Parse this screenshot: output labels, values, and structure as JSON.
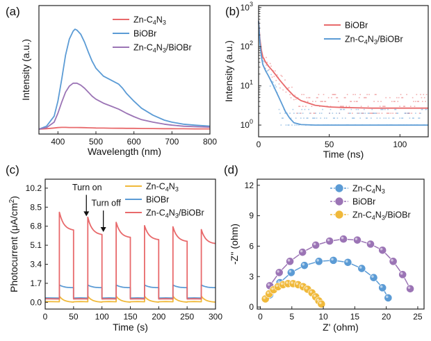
{
  "chart_data": [
    {
      "panel": "(a)",
      "type": "line",
      "xlabel": "Wavelength (nm)",
      "ylabel": "Intensity (a.u.)",
      "xlim": [
        350,
        800
      ],
      "ylim": [
        0,
        1.0
      ],
      "xticks": [
        "400",
        "500",
        "600",
        "700",
        "800"
      ],
      "xtick_values": [
        400,
        500,
        600,
        700,
        800
      ],
      "yticks_shown": false,
      "grid": false,
      "legend_position": "top-right",
      "x": [
        350,
        370,
        390,
        400,
        410,
        420,
        430,
        440,
        445,
        450,
        460,
        470,
        480,
        490,
        500,
        520,
        540,
        560,
        570,
        580,
        600,
        620,
        650,
        680,
        700,
        730,
        760,
        800
      ],
      "series": [
        {
          "name": "Zn-C4N3",
          "name_parts": [
            "Zn-C",
            "4",
            "N",
            "3",
            ""
          ],
          "color": "#e8696b",
          "values": [
            0.0,
            0.005,
            0.012,
            0.016,
            0.018,
            0.018,
            0.017,
            0.017,
            0.017,
            0.017,
            0.016,
            0.015,
            0.014,
            0.013,
            0.012,
            0.011,
            0.01,
            0.009,
            0.009,
            0.008,
            0.008,
            0.007,
            0.006,
            0.005,
            0.005,
            0.004,
            0.003,
            0.003
          ]
        },
        {
          "name": "BiOBr",
          "name_parts": [
            "BiOBr"
          ],
          "color": "#5b9bd5",
          "values": [
            0.0,
            0.03,
            0.13,
            0.28,
            0.5,
            0.74,
            0.9,
            0.98,
            1.0,
            0.99,
            0.95,
            0.87,
            0.77,
            0.68,
            0.61,
            0.53,
            0.49,
            0.45,
            0.41,
            0.36,
            0.28,
            0.21,
            0.14,
            0.09,
            0.07,
            0.05,
            0.04,
            0.03
          ]
        },
        {
          "name": "Zn-C4N3/BiOBr",
          "name_parts": [
            "Zn-C",
            "4",
            "N",
            "3",
            "/BiOBr"
          ],
          "color": "#9b74b5",
          "values": [
            0.0,
            0.015,
            0.07,
            0.16,
            0.27,
            0.37,
            0.43,
            0.46,
            0.46,
            0.46,
            0.44,
            0.41,
            0.37,
            0.33,
            0.3,
            0.26,
            0.23,
            0.2,
            0.18,
            0.16,
            0.125,
            0.095,
            0.07,
            0.05,
            0.04,
            0.03,
            0.025,
            0.02
          ]
        }
      ]
    },
    {
      "panel": "(b)",
      "type": "line",
      "xlabel": "Time (ns)",
      "ylabel": "Intensity (a.u.)",
      "xlim": [
        0,
        120
      ],
      "ylim_log10": [
        -0.3,
        3.05
      ],
      "yscale": "log",
      "xticks": [
        "0",
        "50",
        "100"
      ],
      "xtick_values": [
        0,
        50,
        100
      ],
      "yticks": [
        "10",
        "10",
        "10",
        "10"
      ],
      "ytick_exponents": [
        "0",
        "1",
        "2",
        "3"
      ],
      "ytick_values": [
        1,
        10,
        100,
        1000
      ],
      "grid": false,
      "legend_position": "top-right",
      "series": [
        {
          "name": "BiOBr",
          "name_parts": [
            "BiOBr"
          ],
          "color": "#e8696b",
          "fit_x": [
            0,
            1,
            2,
            3,
            5,
            7,
            10,
            15,
            20,
            25,
            30,
            40,
            50,
            60,
            80,
            100,
            120
          ],
          "fit_y": [
            450,
            150,
            80,
            55,
            40,
            32,
            24,
            14,
            8.5,
            5.5,
            4.2,
            3.2,
            2.9,
            2.8,
            2.7,
            2.7,
            2.7
          ]
        },
        {
          "name": "Zn-C4N3/BiOBr",
          "name_parts": [
            "Zn-C",
            "4",
            "N",
            "3",
            "/BiOBr"
          ],
          "color": "#5b9bd5",
          "fit_x": [
            0,
            1,
            2,
            3,
            5,
            7,
            10,
            13,
            16,
            19,
            22,
            25,
            30,
            40,
            60,
            80,
            100,
            120
          ],
          "fit_y": [
            450,
            120,
            55,
            35,
            24,
            18,
            11,
            6.5,
            3.8,
            2.2,
            1.5,
            1.15,
            1.03,
            1.0,
            1.0,
            1.0,
            1.0,
            1.0
          ]
        }
      ]
    },
    {
      "panel": "(c)",
      "type": "line",
      "xlabel": "Time (s)",
      "ylabel": "Photocurrent (μA/cm²)",
      "ylabel_parts": [
        "Photocurrent (μA/cm",
        "2",
        ")"
      ],
      "xlim": [
        0,
        300
      ],
      "ylim": [
        -0.6,
        11.0
      ],
      "xticks": [
        "0",
        "50",
        "100",
        "150",
        "200",
        "250",
        "300"
      ],
      "xtick_values": [
        0,
        50,
        100,
        150,
        200,
        250,
        300
      ],
      "yticks": [
        "0.0",
        "1.7",
        "3.4",
        "5.1",
        "6.8",
        "8.5",
        "10.2"
      ],
      "ytick_values": [
        0.0,
        1.7,
        3.4,
        5.1,
        6.8,
        8.5,
        10.2
      ],
      "grid": false,
      "legend_position": "top-right",
      "light_on_times": [
        25,
        75,
        125,
        175,
        225,
        275
      ],
      "light_off_times": [
        50,
        100,
        150,
        200,
        250
      ],
      "annotations": [
        {
          "text": "Turn on",
          "x": 75,
          "y": 7.5
        },
        {
          "text": "Turn off",
          "x": 100,
          "y": 6.1
        }
      ],
      "series": [
        {
          "name": "Zn-C4N3",
          "name_parts": [
            "Zn-C",
            "4",
            "N",
            "3",
            ""
          ],
          "color": "#f0b93a",
          "baseline": 0.05,
          "on_peak": 0.55,
          "on_end": 0.0
        },
        {
          "name": "BiOBr",
          "name_parts": [
            "BiOBr"
          ],
          "color": "#5b9bd5",
          "baseline": 0.38,
          "on_peak": 1.55,
          "on_end": 1.3
        },
        {
          "name": "Zn-C4N3/BiOBr",
          "name_parts": [
            "Zn-C",
            "4",
            "N",
            "3",
            "/BiOBr"
          ],
          "color": "#e8696b",
          "baseline": 0.3,
          "peaks": [
            8.05,
            7.6,
            7.15,
            6.85,
            6.75,
            6.5
          ],
          "ends": [
            6.4,
            6.0,
            5.75,
            5.55,
            5.4,
            5.2
          ]
        }
      ]
    },
    {
      "panel": "(d)",
      "type": "scatter",
      "xlabel": "Z' (ohm)",
      "ylabel": "-Z'' (ohm)",
      "xlim": [
        -0.5,
        26
      ],
      "ylim": [
        -0.2,
        12.6
      ],
      "xticks": [
        "0",
        "5",
        "10",
        "15",
        "20",
        "25"
      ],
      "xtick_values": [
        0,
        5,
        10,
        15,
        20,
        25
      ],
      "yticks": [
        "0",
        "3",
        "6",
        "9",
        "12"
      ],
      "ytick_values": [
        0,
        3,
        6,
        9,
        12
      ],
      "grid": false,
      "legend_position": "top-center",
      "series": [
        {
          "name": "Zn-C4N3",
          "name_parts": [
            "Zn-C",
            "4",
            "N",
            "3",
            ""
          ],
          "color": "#5b9bd5",
          "x": [
            1.5,
            3.1,
            4.9,
            7.0,
            9.3,
            11.6,
            13.9,
            16.1,
            18.0,
            19.4,
            20.3
          ],
          "y": [
            1.2,
            2.4,
            3.4,
            4.1,
            4.5,
            4.6,
            4.4,
            3.8,
            2.9,
            1.9,
            0.9
          ]
        },
        {
          "name": "BiOBr",
          "name_parts": [
            "BiOBr"
          ],
          "color": "#9b74b5",
          "x": [
            1.5,
            3.0,
            4.7,
            6.7,
            8.8,
            11.0,
            13.2,
            15.4,
            17.5,
            19.4,
            21.1,
            22.6,
            23.8
          ],
          "y": [
            2.1,
            3.4,
            4.5,
            5.4,
            6.1,
            6.5,
            6.7,
            6.6,
            6.2,
            5.6,
            4.5,
            3.2,
            1.8
          ]
        },
        {
          "name": "Zn-C4N3/BiOBr",
          "name_parts": [
            "Zn-C",
            "4",
            "N",
            "3",
            "/BiOBr"
          ],
          "color": "#f0b93a",
          "x": [
            0.8,
            1.4,
            2.1,
            2.8,
            3.6,
            4.4,
            5.2,
            6.0,
            6.8,
            7.5,
            8.2,
            8.8,
            9.3,
            9.7
          ],
          "y": [
            0.8,
            1.3,
            1.7,
            2.0,
            2.2,
            2.3,
            2.3,
            2.2,
            2.0,
            1.75,
            1.4,
            1.0,
            0.6,
            0.3
          ]
        }
      ]
    }
  ]
}
